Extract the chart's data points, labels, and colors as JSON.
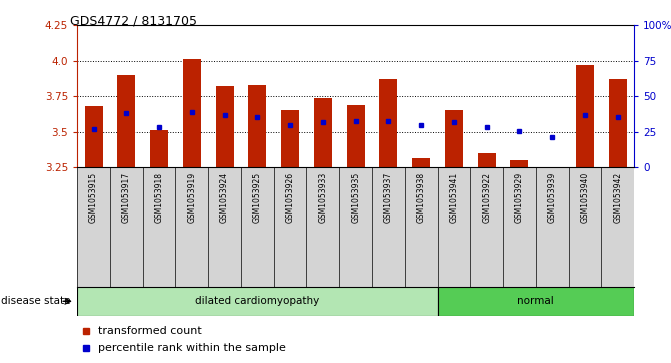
{
  "title": "GDS4772 / 8131705",
  "samples": [
    "GSM1053915",
    "GSM1053917",
    "GSM1053918",
    "GSM1053919",
    "GSM1053924",
    "GSM1053925",
    "GSM1053926",
    "GSM1053933",
    "GSM1053935",
    "GSM1053937",
    "GSM1053938",
    "GSM1053941",
    "GSM1053922",
    "GSM1053929",
    "GSM1053939",
    "GSM1053940",
    "GSM1053942"
  ],
  "bar_values": [
    3.68,
    3.9,
    3.51,
    4.01,
    3.82,
    3.83,
    3.65,
    3.74,
    3.69,
    3.87,
    3.31,
    3.65,
    3.35,
    3.3,
    3.25,
    3.97,
    3.87
  ],
  "blue_values": [
    3.515,
    3.63,
    3.535,
    3.635,
    3.615,
    3.6,
    3.545,
    3.565,
    3.575,
    3.575,
    3.545,
    3.565,
    3.535,
    3.505,
    3.465,
    3.62,
    3.6
  ],
  "disease_groups": [
    {
      "label": "dilated cardiomyopathy",
      "start": 0,
      "end": 11,
      "color": "#b3e6b3"
    },
    {
      "label": "normal",
      "start": 11,
      "end": 17,
      "color": "#55cc55"
    }
  ],
  "ymin": 3.25,
  "ymax": 4.25,
  "yticks": [
    3.25,
    3.5,
    3.75,
    4.0,
    4.25
  ],
  "right_yticks": [
    0,
    25,
    50,
    75,
    100
  ],
  "right_yticklabels": [
    "0",
    "25",
    "50",
    "75",
    "100%"
  ],
  "bar_color": "#bb2200",
  "blue_color": "#0000cc",
  "bar_width": 0.55,
  "grid_dotted_at": [
    3.5,
    3.75,
    4.0
  ],
  "legend_items": [
    {
      "color": "#bb2200",
      "label": "transformed count"
    },
    {
      "color": "#0000cc",
      "label": "percentile rank within the sample"
    }
  ],
  "disease_state_label": "disease state",
  "bg_label": "#d4d4d4",
  "bg_dc": "#b3e6b3",
  "bg_normal": "#55cc55"
}
